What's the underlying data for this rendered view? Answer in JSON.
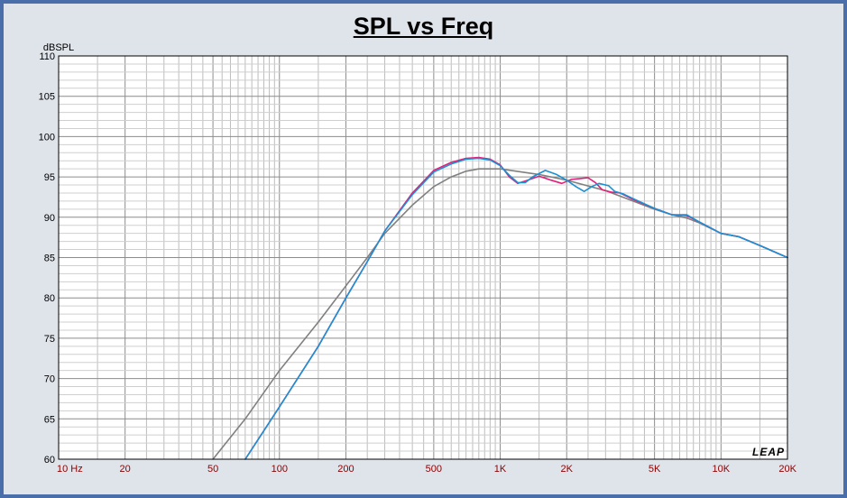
{
  "chart_data": {
    "type": "line",
    "title": "SPL vs Freq",
    "ylabel": "dBSPL",
    "xlabel": "",
    "xscale": "log",
    "xlim": [
      10,
      20000
    ],
    "ylim": [
      60,
      110
    ],
    "y_ticks": [
      60,
      65,
      70,
      75,
      80,
      85,
      90,
      95,
      100,
      105,
      110
    ],
    "x_ticks": [
      {
        "value": 10,
        "label": "10 Hz"
      },
      {
        "value": 20,
        "label": "20"
      },
      {
        "value": 50,
        "label": "50"
      },
      {
        "value": 100,
        "label": "100"
      },
      {
        "value": 200,
        "label": "200"
      },
      {
        "value": 500,
        "label": "500"
      },
      {
        "value": 1000,
        "label": "1K"
      },
      {
        "value": 2000,
        "label": "2K"
      },
      {
        "value": 5000,
        "label": "5K"
      },
      {
        "value": 10000,
        "label": "10K"
      },
      {
        "value": 20000,
        "label": "20K"
      }
    ],
    "grid": true,
    "watermark": "LEAP",
    "series": [
      {
        "color": "#808080",
        "points": [
          [
            50,
            60
          ],
          [
            70,
            65
          ],
          [
            100,
            71
          ],
          [
            150,
            77
          ],
          [
            200,
            81.5
          ],
          [
            250,
            85
          ],
          [
            300,
            88
          ],
          [
            400,
            91.5
          ],
          [
            500,
            93.8
          ],
          [
            600,
            95
          ],
          [
            700,
            95.7
          ],
          [
            800,
            96
          ],
          [
            1000,
            96
          ],
          [
            1500,
            95.3
          ],
          [
            2000,
            94.6
          ],
          [
            3000,
            93.3
          ],
          [
            4000,
            92
          ],
          [
            5000,
            91
          ],
          [
            6000,
            90.3
          ],
          [
            7000,
            89.9
          ],
          [
            8000,
            89.3
          ],
          [
            10000,
            88
          ],
          [
            12000,
            87.6
          ],
          [
            15000,
            86.5
          ],
          [
            20000,
            85
          ]
        ]
      },
      {
        "color": "#e0207a",
        "points": [
          [
            70,
            60
          ],
          [
            100,
            66.5
          ],
          [
            150,
            74
          ],
          [
            200,
            80
          ],
          [
            250,
            84.5
          ],
          [
            300,
            88.3
          ],
          [
            400,
            93
          ],
          [
            500,
            95.8
          ],
          [
            600,
            96.8
          ],
          [
            700,
            97.3
          ],
          [
            800,
            97.4
          ],
          [
            900,
            97.2
          ],
          [
            1000,
            96.5
          ],
          [
            1100,
            95
          ],
          [
            1200,
            94.2
          ],
          [
            1300,
            94.5
          ],
          [
            1500,
            95.1
          ],
          [
            1700,
            94.6
          ],
          [
            1900,
            94.2
          ],
          [
            2100,
            94.7
          ],
          [
            2300,
            94.8
          ],
          [
            2500,
            94.9
          ],
          [
            2700,
            94.3
          ],
          [
            2900,
            93.4
          ],
          [
            3200,
            93.1
          ],
          [
            3500,
            93
          ],
          [
            4000,
            92.2
          ],
          [
            5000,
            91.1
          ],
          [
            6000,
            90.3
          ],
          [
            7000,
            90.2
          ],
          [
            8000,
            89.4
          ],
          [
            10000,
            88
          ],
          [
            12000,
            87.6
          ],
          [
            15000,
            86.5
          ],
          [
            20000,
            85
          ]
        ]
      },
      {
        "color": "#1a90d4",
        "points": [
          [
            70,
            60
          ],
          [
            100,
            66.5
          ],
          [
            150,
            74
          ],
          [
            200,
            80
          ],
          [
            250,
            84.5
          ],
          [
            300,
            88.3
          ],
          [
            400,
            92.8
          ],
          [
            500,
            95.6
          ],
          [
            600,
            96.6
          ],
          [
            700,
            97.2
          ],
          [
            800,
            97.3
          ],
          [
            900,
            97.1
          ],
          [
            1000,
            96.4
          ],
          [
            1100,
            95.2
          ],
          [
            1200,
            94.3
          ],
          [
            1300,
            94.3
          ],
          [
            1400,
            95
          ],
          [
            1600,
            95.8
          ],
          [
            1800,
            95.3
          ],
          [
            2000,
            94.6
          ],
          [
            2200,
            93.8
          ],
          [
            2400,
            93.2
          ],
          [
            2600,
            93.8
          ],
          [
            2800,
            94.2
          ],
          [
            3100,
            93.9
          ],
          [
            3300,
            93.2
          ],
          [
            3600,
            92.9
          ],
          [
            4000,
            92.3
          ],
          [
            5000,
            91.1
          ],
          [
            6000,
            90.3
          ],
          [
            7000,
            90.3
          ],
          [
            8000,
            89.4
          ],
          [
            10000,
            88
          ],
          [
            12000,
            87.6
          ],
          [
            15000,
            86.5
          ],
          [
            20000,
            85
          ]
        ]
      }
    ]
  }
}
